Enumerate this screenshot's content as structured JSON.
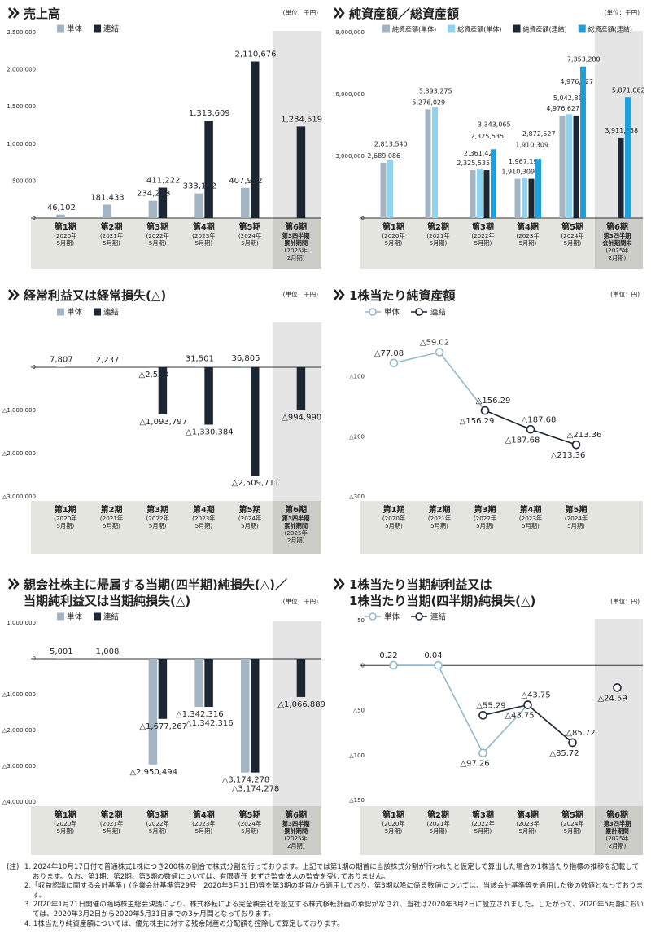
{
  "chart_data": [
    {
      "type": "bar",
      "title": "売上高",
      "unit": "(単位：千円)",
      "categories": [
        "第1期",
        "第2期",
        "第3期",
        "第4期",
        "第5期",
        "第6期"
      ],
      "category_details": [
        [
          "(2020年",
          "5月期)"
        ],
        [
          "(2021年",
          "5月期)"
        ],
        [
          "(2022年",
          "5月期)"
        ],
        [
          "(2023年",
          "5月期)"
        ],
        [
          "(2024年",
          "5月期)"
        ],
        [
          "第3四半期",
          "累計期間",
          "(2025年",
          "2月期)"
        ]
      ],
      "series": [
        {
          "name": "単体",
          "color": "#a3b5c3",
          "values": [
            46102,
            181433,
            234228,
            333192,
            407972,
            null
          ],
          "value_labels": [
            "46,102",
            "181,433",
            "234,228",
            "333,192",
            "407,972",
            null
          ]
        },
        {
          "name": "連結",
          "color": "#1c2733",
          "values": [
            null,
            null,
            411222,
            1313609,
            2110676,
            1234519
          ],
          "value_labels": [
            null,
            null,
            "411,222",
            "1,313,609",
            "2,110,676",
            "1,234,519"
          ]
        }
      ],
      "ylim": [
        0,
        2500000
      ],
      "yticks": [
        0,
        {
          "value": 500000,
          "label": "500,000"
        },
        {
          "value": 1000000,
          "label": "1,000,000"
        },
        {
          "value": 1500000,
          "label": "1,500,000"
        },
        {
          "value": 2000000,
          "label": "2,000,000"
        },
        {
          "value": 2500000,
          "label": "2,500,000"
        }
      ],
      "zero_line": true,
      "highlight_category": 5
    },
    {
      "type": "bar",
      "title": "純資産額／総資産額",
      "unit": "(単位：千円)",
      "categories": [
        "第1期",
        "第2期",
        "第3期",
        "第4期",
        "第5期",
        "第6期"
      ],
      "category_details": [
        [
          "(2020年",
          "5月期)"
        ],
        [
          "(2021年",
          "5月期)"
        ],
        [
          "(2022年",
          "5月期)"
        ],
        [
          "(2023年",
          "5月期)"
        ],
        [
          "(2024年",
          "5月期)"
        ],
        [
          "第3四半期",
          "会計期間末",
          "(2025年",
          "2月期)"
        ]
      ],
      "series": [
        {
          "name": "純資産額(単体)",
          "color": "#a3b5c3",
          "values": [
            2689086,
            5276029,
            2325535,
            1910309,
            4976627,
            null
          ],
          "value_labels": [
            "2,689,086",
            "5,276,029",
            "2,325,535",
            "1,910,309",
            "4,976,627",
            null
          ]
        },
        {
          "name": "総資産額(単体)",
          "color": "#8fd3f0",
          "values": [
            2813540,
            5393275,
            2361425,
            1967199,
            5042818,
            null
          ],
          "value_labels": [
            "2,813,540",
            "5,393,275",
            "2,361,425",
            "1,967,199",
            "5,042,818",
            null
          ]
        },
        {
          "name": "純資産額(連結)",
          "color": "#1c2733",
          "values": [
            null,
            null,
            2325535,
            1910309,
            4976627,
            3911858
          ],
          "value_labels": [
            null,
            null,
            "2,325,535",
            "1,910,309",
            "4,976,627",
            "3,911,858"
          ]
        },
        {
          "name": "総資産額(連結)",
          "color": "#1ea1db",
          "values": [
            null,
            null,
            3343065,
            2872527,
            7353280,
            5871062
          ],
          "value_labels": [
            null,
            null,
            "3,343,065",
            "2,872,527",
            "7,353,280",
            "5,871,062"
          ]
        }
      ],
      "ylim": [
        0,
        9000000
      ],
      "yticks": [
        0,
        {
          "value": 3000000,
          "label": "3,000,000"
        },
        {
          "value": 6000000,
          "label": "6,000,000"
        },
        {
          "value": 9000000,
          "label": "9,000,000"
        }
      ],
      "zero_line": true,
      "highlight_category": 5
    },
    {
      "type": "bar",
      "title": "経常利益又は経常損失(△)",
      "unit": "(単位：千円)",
      "categories": [
        "第1期",
        "第2期",
        "第3期",
        "第4期",
        "第5期",
        "第6期"
      ],
      "category_details": [
        [
          "(2020年",
          "5月期)"
        ],
        [
          "(2021年",
          "5月期)"
        ],
        [
          "(2022年",
          "5月期)"
        ],
        [
          "(2023年",
          "5月期)"
        ],
        [
          "(2024年",
          "5月期)"
        ],
        [
          "第3四半期",
          "累計期間",
          "(2025年",
          "2月期)"
        ]
      ],
      "series": [
        {
          "name": "単体",
          "color": "#a3b5c3",
          "values": [
            7807,
            2237,
            -2563,
            31501,
            36805,
            null
          ],
          "value_labels": [
            "7,807",
            "2,237",
            "△2,563",
            "31,501",
            "36,805",
            null
          ]
        },
        {
          "name": "連結",
          "color": "#1c2733",
          "values": [
            null,
            null,
            -1093797,
            -1330384,
            -2509711,
            -994990
          ],
          "value_labels": [
            null,
            null,
            "△1,093,797",
            "△1,330,384",
            "△2,509,711",
            "△994,990"
          ]
        }
      ],
      "ylim": [
        -3000000,
        1000000
      ],
      "yticks": [
        0,
        {
          "value": -1000000,
          "label": "△1,000,000"
        },
        {
          "value": -2000000,
          "label": "△2,000,000"
        },
        {
          "value": -3000000,
          "label": "△3,000,000"
        }
      ],
      "zero_line": true,
      "highlight_category": 5
    },
    {
      "type": "line",
      "title": "1株当たり純資産額",
      "unit": "(単位：円)",
      "categories": [
        "第1期",
        "第2期",
        "第3期",
        "第4期",
        "第5期"
      ],
      "category_details": [
        [
          "(2020年",
          "5月期)"
        ],
        [
          "(2021年",
          "5月期)"
        ],
        [
          "(2022年",
          "5月期)"
        ],
        [
          "(2023年",
          "5月期)"
        ],
        [
          "(2024年",
          "5月期)"
        ]
      ],
      "series": [
        {
          "name": "単体",
          "color": "#93b8cc",
          "values": [
            -77.08,
            -59.02,
            -156.29,
            -187.68,
            -213.36
          ],
          "value_labels": [
            "△77.08",
            "△59.02",
            "△156.29",
            "△187.68",
            "△213.36"
          ]
        },
        {
          "name": "連結",
          "color": "#1c2733",
          "values": [
            null,
            null,
            -156.29,
            -187.68,
            -213.36
          ],
          "value_labels": [
            null,
            null,
            "△156.29",
            "△187.68",
            "△213.36"
          ]
        }
      ],
      "ylim": [
        -300,
        0
      ],
      "yticks": [
        {
          "value": -100,
          "label": "△100"
        },
        {
          "value": -200,
          "label": "△200"
        },
        {
          "value": -300,
          "label": "△300"
        }
      ],
      "zero_line": false
    },
    {
      "type": "bar",
      "title": [
        "親会社株主に帰属する当期(四半期)純損失(△)／",
        "当期純利益又は当期純損失(△)"
      ],
      "unit": "(単位：千円)",
      "categories": [
        "第1期",
        "第2期",
        "第3期",
        "第4期",
        "第5期",
        "第6期"
      ],
      "category_details": [
        [
          "(2020年",
          "5月期)"
        ],
        [
          "(2021年",
          "5月期)"
        ],
        [
          "(2022年",
          "5月期)"
        ],
        [
          "(2023年",
          "5月期)"
        ],
        [
          "(2024年",
          "5月期)"
        ],
        [
          "第3四半期",
          "累計期間",
          "(2025年",
          "2月期)"
        ]
      ],
      "series": [
        {
          "name": "単体",
          "color": "#a3b5c3",
          "values": [
            5001,
            1008,
            -2950494,
            -1342316,
            -3174278,
            null
          ],
          "value_labels": [
            "5,001",
            "1,008",
            "△2,950,494",
            "△1,342,316",
            "△3,174,278",
            null
          ]
        },
        {
          "name": "連結",
          "color": "#1c2733",
          "values": [
            null,
            null,
            -1677267,
            -1342316,
            -3174278,
            -1066889
          ],
          "value_labels": [
            null,
            null,
            "△1,677,267",
            "△1,342,316",
            "△3,174,278",
            "△1,066,889"
          ]
        }
      ],
      "ylim": [
        -4000000,
        1000000
      ],
      "yticks": [
        {
          "value": 1000000,
          "label": "1,000,000"
        },
        0,
        {
          "value": -1000000,
          "label": "△1,000,000"
        },
        {
          "value": -2000000,
          "label": "△2,000,000"
        },
        {
          "value": -3000000,
          "label": "△3,000,000"
        },
        {
          "value": -4000000,
          "label": "△4,000,000"
        }
      ],
      "zero_line": true,
      "highlight_category": 5
    },
    {
      "type": "line",
      "title": [
        "1株当たり当期純利益又は",
        "1株当たり当期(四半期)純損失(△)"
      ],
      "unit": "(単位：円)",
      "categories": [
        "第1期",
        "第2期",
        "第3期",
        "第4期",
        "第5期",
        "第6期"
      ],
      "category_details": [
        [
          "(2020年",
          "5月期)"
        ],
        [
          "(2021年",
          "5月期)"
        ],
        [
          "(2022年",
          "5月期)"
        ],
        [
          "(2023年",
          "5月期)"
        ],
        [
          "(2024年",
          "5月期)"
        ],
        [
          "第3四半期",
          "累計期間",
          "(2025年",
          "2月期)"
        ]
      ],
      "series": [
        {
          "name": "単体",
          "color": "#93b8cc",
          "values": [
            0.22,
            0.04,
            -97.26,
            -43.75,
            -85.72,
            null
          ],
          "value_labels": [
            "0.22",
            "0.04",
            "△97.26",
            "△43.75",
            "△85.72",
            null
          ]
        },
        {
          "name": "連結",
          "color": "#1c2733",
          "values": [
            null,
            null,
            -55.29,
            -43.75,
            -85.72,
            -24.59
          ],
          "value_labels": [
            null,
            null,
            "△55.29",
            "△43.75",
            "△85.72",
            "△24.59"
          ],
          "unconnected_points": [
            5
          ]
        }
      ],
      "ylim": [
        -150,
        50
      ],
      "yticks": [
        50,
        0,
        {
          "value": -50,
          "label": "△50"
        },
        {
          "value": -100,
          "label": "△100"
        },
        {
          "value": -150,
          "label": "△150"
        }
      ],
      "zero_line": true,
      "highlight_category": 5
    }
  ],
  "notes": {
    "label": "(注)",
    "items": [
      "1. 2024年10月17日付で普通株式1株につき200株の割合で株式分割を行っております。上記では第1期の期首に当該株式分割が行われたと仮定して算出した場合の1株当たり指標の推移を記載しております。なお、第1期、第2期、第3期の数値については、有限責任 あずさ監査法人の監査を受けておりません。",
      "2.「収益認識に関する会計基準」(企業会計基準第29号　2020年3月31日)等を第3期の期首から適用しており、第3期以降に係る数値については、当該会計基準等を適用した後の数値となっております。",
      "3. 2020年1月21日開催の臨時株主総会決議により、株式移転による完全親会社を設立する株式移転計画の承認がなされ、当社は2020年3月2日に設立されました。したがって、2020年5月期においては、2020年3月2日から2020年5月31日までの3ヶ月間となっております。",
      "4. 1株当たり純資産額については、優先株主に対する残余財産の分配額を控除して算定しております。"
    ]
  }
}
